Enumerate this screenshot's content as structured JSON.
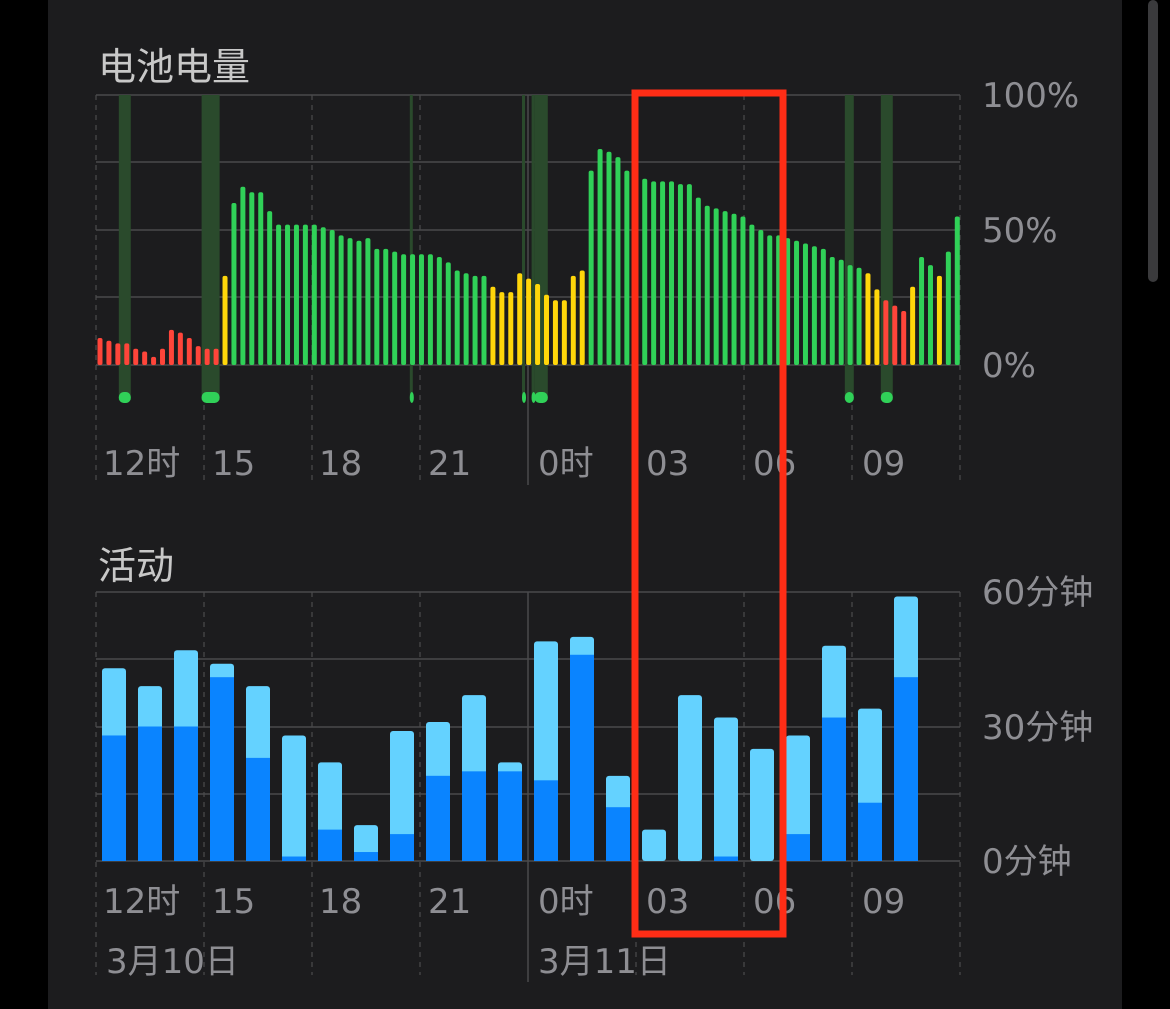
{
  "colors": {
    "bg": "#1c1c1e",
    "grid": "#4a4a4c",
    "battery_green": "#30d158",
    "battery_yellow": "#ffd60a",
    "battery_red": "#ff453a",
    "charging_band": "#2a4a2c",
    "activity_dark": "#0a84ff",
    "activity_light": "#64d2ff",
    "highlight": "#ff2d16"
  },
  "battery": {
    "title": "电池电量",
    "y_labels": [
      "100%",
      "50%",
      "0%"
    ],
    "x_labels": [
      "12时",
      "15",
      "18",
      "21",
      "0时",
      "03",
      "06",
      "09"
    ]
  },
  "activity": {
    "title": "活动",
    "y_labels": [
      "60分钟",
      "30分钟",
      "0分钟"
    ],
    "x_labels": [
      "12时",
      "15",
      "18",
      "21",
      "0时",
      "03",
      "06",
      "09"
    ],
    "date_labels": [
      "3月10日",
      "3月11日"
    ]
  },
  "chart_data": [
    {
      "type": "bar",
      "title": "电池电量",
      "ylim": [
        0,
        100
      ],
      "yticks": [
        "0%",
        "50%",
        "100%"
      ],
      "x_ticks": [
        "12时",
        "15",
        "18",
        "21",
        "0时",
        "03",
        "06",
        "09"
      ],
      "levels": [
        10,
        9,
        8,
        8,
        6,
        5,
        3,
        6,
        13,
        12,
        10,
        7,
        6,
        6,
        33,
        60,
        66,
        64,
        64,
        57,
        52,
        52,
        52,
        52,
        52,
        51,
        50,
        48,
        47,
        46,
        47,
        43,
        43,
        42,
        41,
        41,
        41,
        41,
        40,
        38,
        35,
        34,
        33,
        33,
        29,
        27,
        27,
        34,
        32,
        30,
        26,
        24,
        24,
        33,
        35,
        72,
        80,
        79,
        77,
        72,
        70,
        69,
        68,
        68,
        68,
        67,
        67,
        62,
        59,
        58,
        57,
        56,
        55,
        52,
        50,
        48,
        48,
        47,
        46,
        45,
        44,
        43,
        40,
        39,
        37,
        36,
        34,
        28,
        24,
        22,
        20,
        29,
        40,
        37,
        33,
        42,
        55
      ],
      "charging_spans": [
        [
          "12:38",
          "12:58"
        ],
        [
          "14:56",
          "15:26"
        ],
        [
          "20:43",
          "20:46"
        ],
        [
          "23:50",
          "23:53"
        ],
        [
          "00:06",
          "00:09"
        ],
        [
          "00:11",
          "00:33"
        ],
        [
          "08:48",
          "09:03"
        ],
        [
          "09:48",
          "10:08"
        ]
      ]
    },
    {
      "type": "stacked_bar",
      "title": "活动",
      "ylim": [
        0,
        60
      ],
      "yticks": [
        "0分钟",
        "30分钟",
        "60分钟"
      ],
      "x_ticks": [
        "12时",
        "15",
        "18",
        "21",
        "0时",
        "03",
        "06",
        "09"
      ],
      "date_labels": [
        "3月10日",
        "3月11日"
      ],
      "hours": [
        "12",
        "13",
        "14",
        "15",
        "16",
        "17",
        "18",
        "19",
        "20",
        "21",
        "22",
        "23",
        "00",
        "01",
        "02",
        "03",
        "04",
        "05",
        "06",
        "07",
        "08",
        "09",
        "10"
      ],
      "screen_on_dark": [
        28,
        30,
        30,
        41,
        23,
        1,
        7,
        2,
        6,
        19,
        20,
        20,
        18,
        46,
        12,
        0,
        0,
        1,
        0,
        6,
        32,
        13,
        41
      ],
      "screen_off_light": [
        15,
        9,
        17,
        3,
        16,
        27,
        15,
        6,
        23,
        12,
        17,
        2,
        31,
        4,
        7,
        7,
        37,
        31,
        25,
        22,
        16,
        21,
        18
      ]
    }
  ]
}
